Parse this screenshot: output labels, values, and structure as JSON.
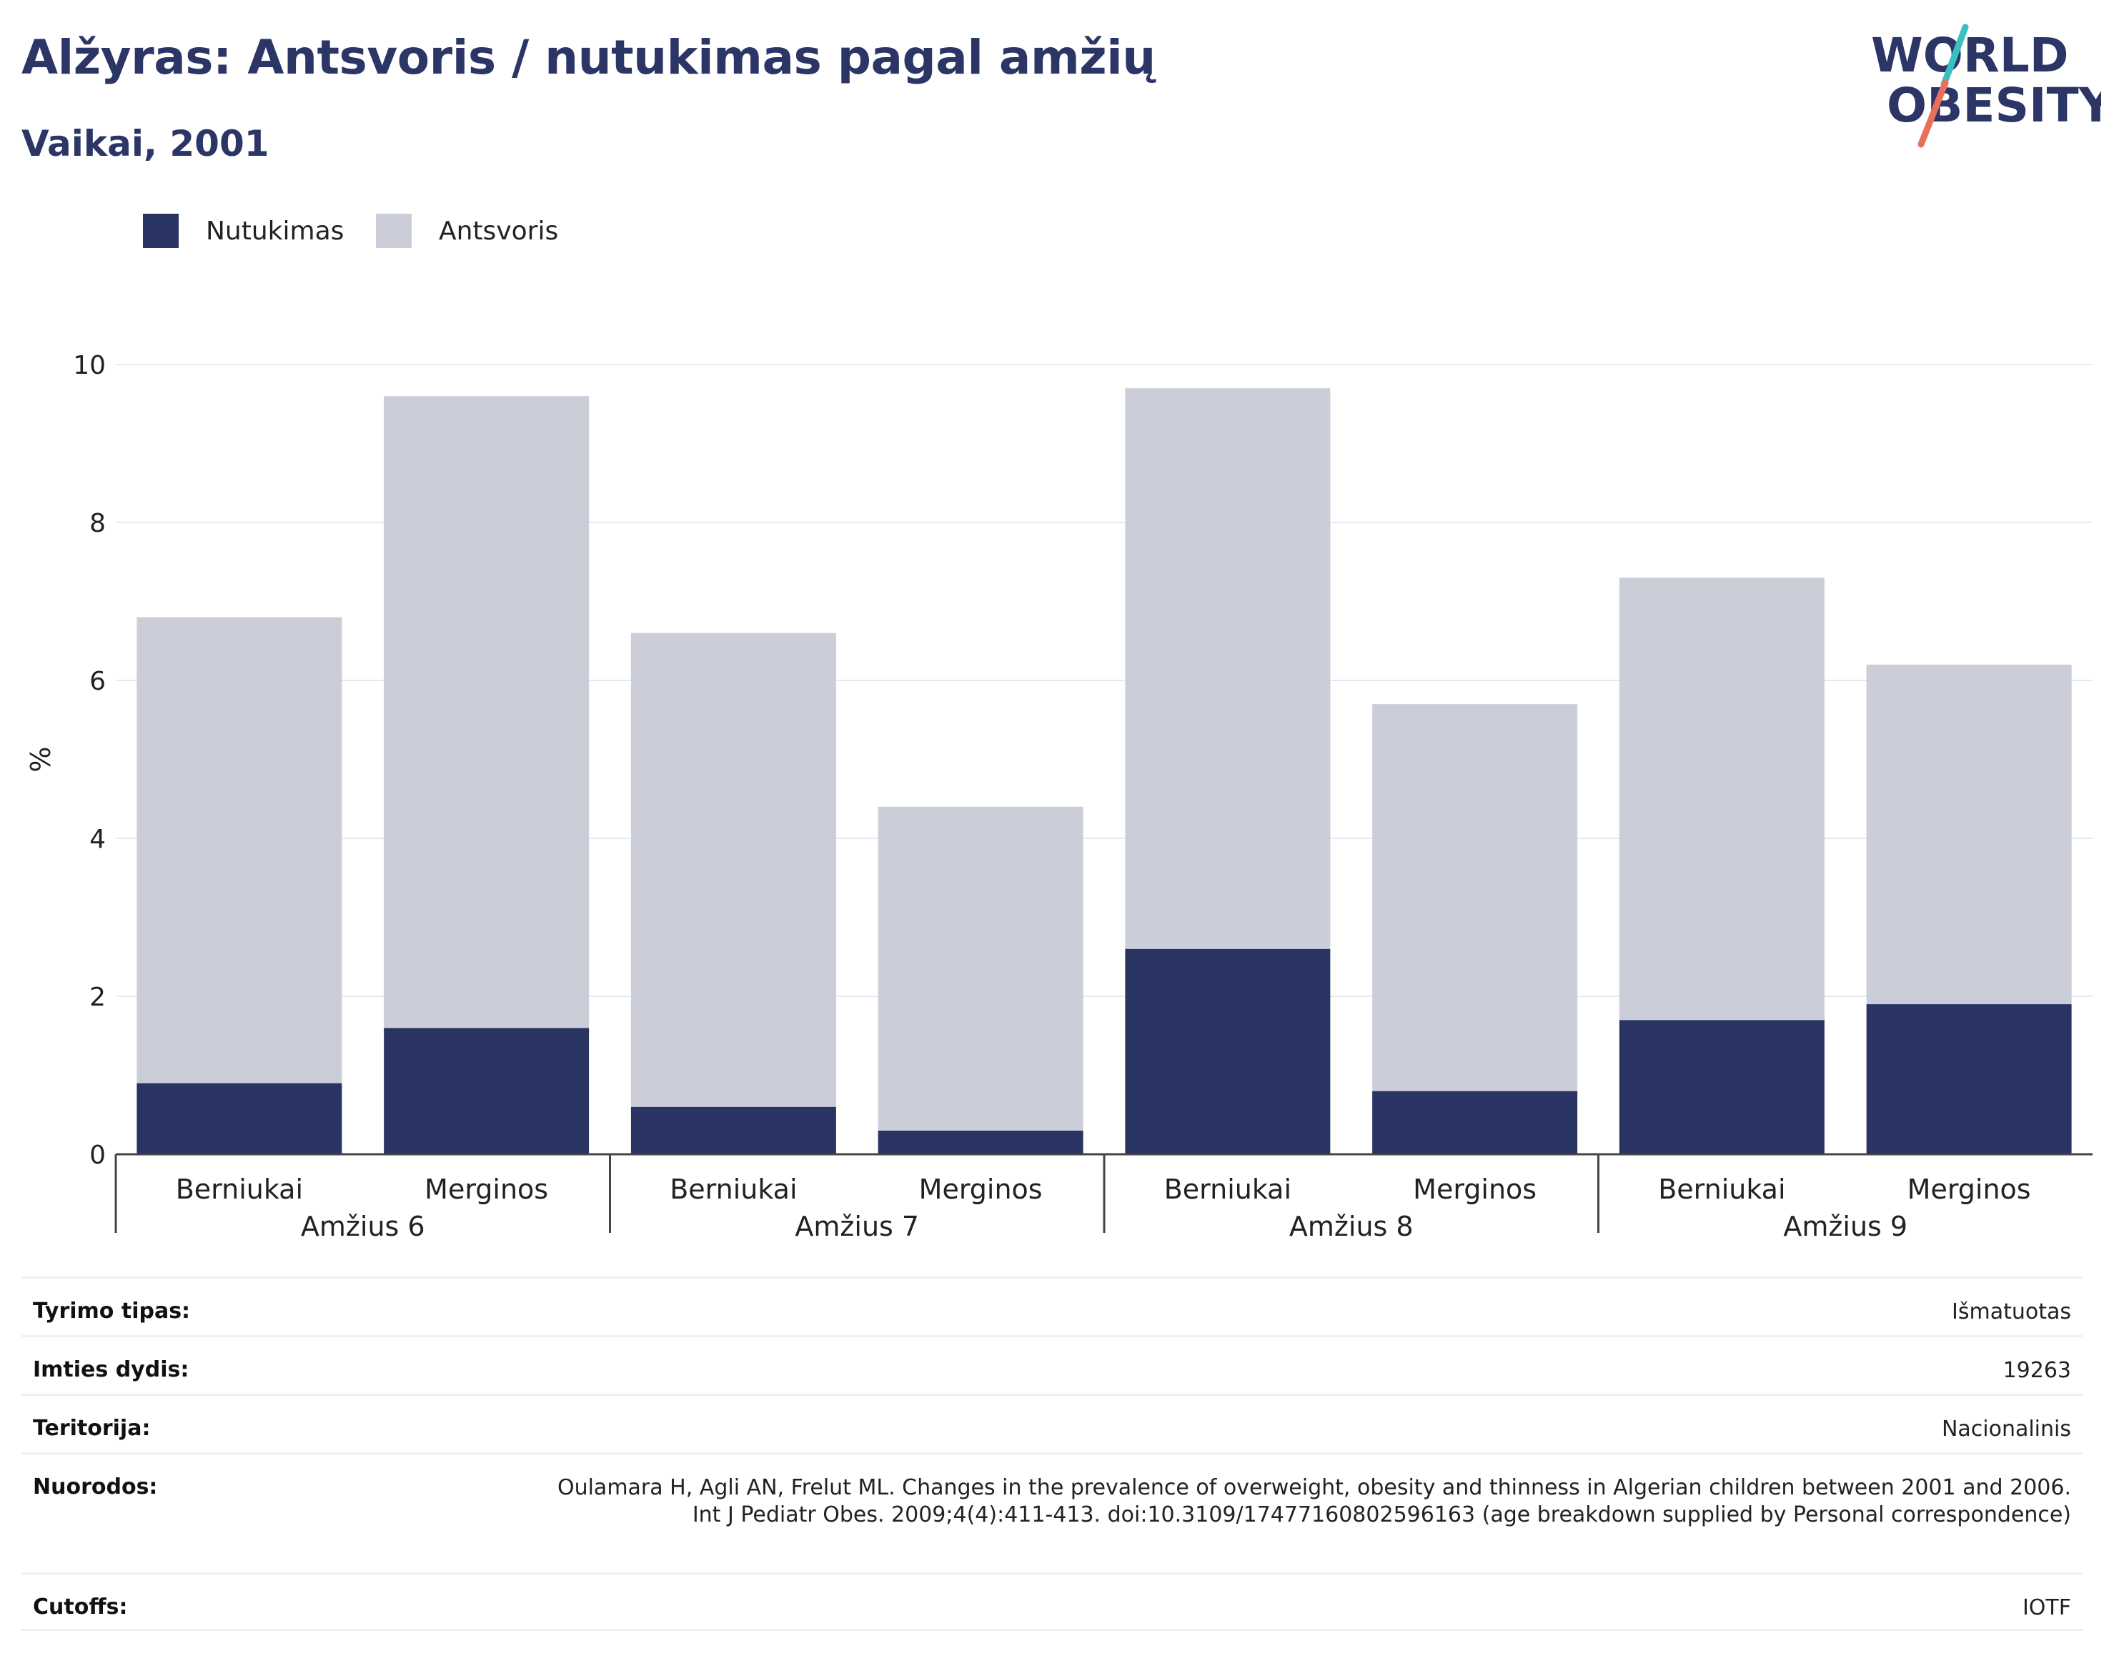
{
  "title": "Alžyras: Antsvoris / nutukimas pagal amžių",
  "subtitle": "Vaikai, 2001",
  "logo": {
    "line1": "WORLD",
    "line2": "OBESITY"
  },
  "colors": {
    "obesity": "#293462",
    "overweight": "#cbcdd8",
    "title": "#2b3566",
    "logo_teal": "#3bbfc0",
    "logo_red": "#e8705a"
  },
  "legend": [
    {
      "label": "Nutukimas",
      "color": "#293462"
    },
    {
      "label": "Antsvoris",
      "color": "#cbcdd8"
    }
  ],
  "chart_data": {
    "type": "bar",
    "stacked": true,
    "ylabel": "%",
    "ylim": [
      0,
      10
    ],
    "yticks": [
      0,
      2,
      4,
      6,
      8,
      10
    ],
    "grid": true,
    "legend_position": "top-left",
    "groups": [
      "Amžius 6",
      "Amžius 7",
      "Amžius 8",
      "Amžius 9"
    ],
    "categories": [
      "Berniukai",
      "Merginos",
      "Berniukai",
      "Merginos",
      "Berniukai",
      "Merginos",
      "Berniukai",
      "Merginos"
    ],
    "category_groups": [
      0,
      0,
      1,
      1,
      2,
      2,
      3,
      3
    ],
    "series": [
      {
        "name": "Nutukimas",
        "values": [
          0.9,
          1.6,
          0.6,
          0.3,
          2.6,
          0.8,
          1.7,
          1.9
        ]
      },
      {
        "name": "Antsvoris",
        "values": [
          5.9,
          8.0,
          6.0,
          4.1,
          7.1,
          4.9,
          5.6,
          4.3
        ]
      }
    ]
  },
  "meta": [
    {
      "label": "Tyrimo tipas:",
      "value": "Išmatuotas"
    },
    {
      "label": "Imties dydis:",
      "value": "19263"
    },
    {
      "label": "Teritorija:",
      "value": "Nacionalinis"
    },
    {
      "label": "Nuorodos:",
      "value": "Oulamara H, Agli AN, Frelut ML. Changes in the prevalence of overweight, obesity and thinness in Algerian children between 2001 and 2006. Int J Pediatr Obes. 2009;4(4):411-413. doi:10.3109/17477160802596163 (age breakdown supplied by Personal correspondence)"
    },
    {
      "label": "Cutoffs:",
      "value": "IOTF"
    }
  ]
}
